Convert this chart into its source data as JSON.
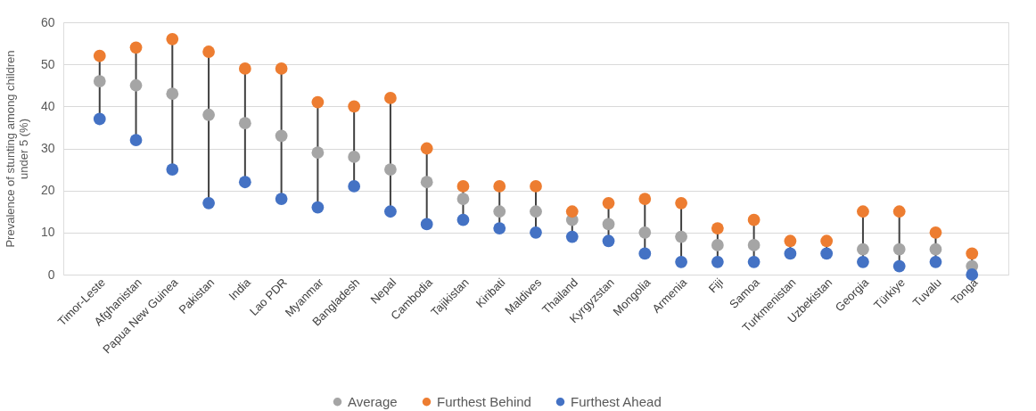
{
  "chart_data": {
    "type": "scatter",
    "ylabel": "Prevalence of stunting among children under 5 (%)",
    "categories": [
      "Timor-Leste",
      "Afghanistan",
      "Papua New Guinea",
      "Pakistan",
      "India",
      "Lao PDR",
      "Myanmar",
      "Bangladesh",
      "Nepal",
      "Cambodia",
      "Tajikistan",
      "Kiribati",
      "Maldives",
      "Thailand",
      "Kyrgyzstan",
      "Mongolia",
      "Armenia",
      "Fiji",
      "Samoa",
      "Turkmenistan",
      "Uzbekistan",
      "Georgia",
      "Türkiye",
      "Tuvalu",
      "Tonga"
    ],
    "series": [
      {
        "name": "Average",
        "color": "#a5a5a5",
        "values": [
          46,
          45,
          43,
          38,
          36,
          33,
          29,
          28,
          25,
          22,
          18,
          15,
          15,
          13,
          12,
          10,
          9,
          7,
          7,
          null,
          null,
          6,
          6,
          6,
          2
        ]
      },
      {
        "name": "Furthest Behind",
        "color": "#ed7d31",
        "values": [
          52,
          54,
          56,
          53,
          49,
          49,
          41,
          40,
          42,
          30,
          21,
          21,
          21,
          15,
          17,
          18,
          17,
          11,
          13,
          8,
          8,
          15,
          15,
          10,
          5
        ]
      },
      {
        "name": "Furthest Ahead",
        "color": "#4472c4",
        "values": [
          37,
          32,
          25,
          17,
          22,
          18,
          16,
          21,
          15,
          12,
          13,
          11,
          10,
          9,
          8,
          5,
          3,
          3,
          3,
          5,
          5,
          3,
          2,
          3,
          0
        ]
      }
    ],
    "ylim": [
      0,
      60
    ],
    "yticks": [
      0,
      10,
      20,
      30,
      40,
      50,
      60
    ],
    "grid": "y",
    "legend": "bottom",
    "marker": "circle"
  }
}
